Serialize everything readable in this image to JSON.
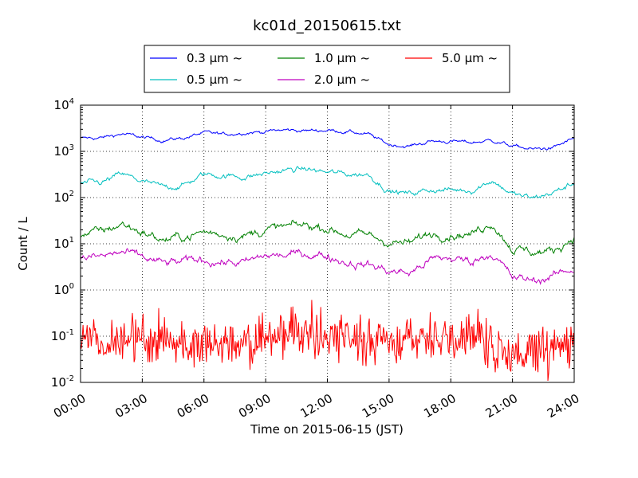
{
  "chart_data": {
    "type": "line",
    "title": "kc01d_20150615.txt",
    "xlabel": "Time on 2015-06-15 (JST)",
    "ylabel": "Count / L",
    "y_scale": "log",
    "ylim": [
      0.01,
      10000
    ],
    "x_range": [
      "00:00",
      "24:00"
    ],
    "x_ticks": [
      "00:00",
      "03:00",
      "06:00",
      "09:00",
      "12:00",
      "15:00",
      "18:00",
      "21:00",
      "24:00"
    ],
    "y_ticks": [
      {
        "base": "10",
        "exp": "-2"
      },
      {
        "base": "10",
        "exp": "-1"
      },
      {
        "base": "10",
        "exp": "0"
      },
      {
        "base": "10",
        "exp": "1"
      },
      {
        "base": "10",
        "exp": "2"
      },
      {
        "base": "10",
        "exp": "3"
      },
      {
        "base": "10",
        "exp": "4"
      }
    ],
    "grid": true,
    "legend_position": "top-center",
    "legend_columns": 3,
    "series": [
      {
        "name": "0.3 μm ~",
        "color": "#0000ff",
        "x_hours": [
          0,
          1,
          2,
          3,
          4,
          5,
          6,
          7,
          8,
          9,
          10,
          11,
          12,
          13,
          14,
          15,
          16,
          17,
          18,
          19,
          20,
          21,
          22,
          23,
          24
        ],
        "values": [
          1900,
          1950,
          2400,
          2000,
          1750,
          1950,
          2500,
          2300,
          2600,
          2700,
          2900,
          2800,
          2900,
          2700,
          2300,
          1400,
          1300,
          1650,
          1650,
          1550,
          1750,
          1300,
          1100,
          1200,
          1900
        ],
        "noise": 0.05
      },
      {
        "name": "0.5 μm ~",
        "color": "#00bfbf",
        "x_hours": [
          0,
          1,
          2,
          3,
          4,
          5,
          6,
          7,
          8,
          9,
          10,
          11,
          12,
          13,
          14,
          15,
          16,
          17,
          18,
          19,
          20,
          21,
          22,
          23,
          24
        ],
        "values": [
          200,
          205,
          320,
          220,
          165,
          185,
          320,
          300,
          280,
          330,
          390,
          410,
          350,
          320,
          320,
          140,
          120,
          150,
          145,
          145,
          240,
          120,
          95,
          130,
          200
        ],
        "noise": 0.08
      },
      {
        "name": "1.0 μm ~",
        "color": "#008000",
        "x_hours": [
          0,
          1,
          2,
          3,
          4,
          5,
          6,
          7,
          8,
          9,
          10,
          11,
          12,
          13,
          14,
          15,
          16,
          17,
          18,
          19,
          20,
          21,
          22,
          23,
          24
        ],
        "values": [
          16,
          18,
          27,
          18,
          12,
          14,
          18,
          16,
          15,
          20,
          23,
          25,
          22,
          16,
          15,
          11,
          10,
          17,
          17,
          16,
          30,
          8,
          6.5,
          7,
          15
        ],
        "noise": 0.12
      },
      {
        "name": "2.0 μm ~",
        "color": "#bf00bf",
        "x_hours": [
          0,
          1,
          2,
          3,
          4,
          5,
          6,
          7,
          8,
          9,
          10,
          11,
          12,
          13,
          14,
          15,
          16,
          17,
          18,
          19,
          20,
          21,
          22,
          23,
          24
        ],
        "values": [
          5,
          5.2,
          6.5,
          5,
          3.7,
          4,
          4.5,
          4,
          3.8,
          5.5,
          5.5,
          6.2,
          5.5,
          4,
          3.5,
          2.6,
          2.3,
          4.5,
          4.8,
          4.2,
          6.5,
          1.8,
          1.6,
          2,
          3
        ],
        "noise": 0.12
      },
      {
        "name": "5.0 μm ~",
        "color": "#ff0000",
        "x_hours": [
          0,
          1,
          2,
          3,
          4,
          5,
          6,
          7,
          8,
          9,
          10,
          11,
          12,
          13,
          14,
          15,
          16,
          17,
          18,
          19,
          20,
          21,
          22,
          23,
          24
        ],
        "values": [
          0.11,
          0.1,
          0.12,
          0.1,
          0.09,
          0.09,
          0.1,
          0.09,
          0.09,
          0.12,
          0.15,
          0.14,
          0.13,
          0.12,
          0.1,
          0.09,
          0.12,
          0.11,
          0.1,
          0.11,
          0.08,
          0.05,
          0.06,
          0.07,
          0.09
        ],
        "noise": 0.55
      }
    ]
  }
}
